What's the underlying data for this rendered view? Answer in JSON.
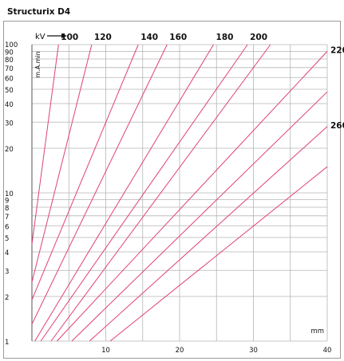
{
  "title": "Structurix D4",
  "chart_data": {
    "type": "line",
    "title": "Structurix D4",
    "xlabel": "mm",
    "ylabel": "m.A.min",
    "series_axis_label": "kV",
    "x_range": [
      0,
      40
    ],
    "y_range": [
      1,
      100
    ],
    "y_scale": "log",
    "x_ticks": [
      10,
      20,
      30,
      40
    ],
    "y_ticks": [
      1,
      2,
      3,
      4,
      5,
      6,
      7,
      8,
      9,
      10,
      20,
      30,
      40,
      50,
      60,
      70,
      80,
      90,
      100
    ],
    "grid": true,
    "colors": {
      "series": "#e0407a",
      "grid": "#b5b5b5",
      "frame": "#9a9a9a"
    },
    "series": [
      {
        "name": "100",
        "points": [
          [
            0,
            4.5
          ],
          [
            3.6,
            100
          ]
        ]
      },
      {
        "name": "120",
        "points": [
          [
            0,
            2.5
          ],
          [
            8.1,
            100
          ]
        ]
      },
      {
        "name": "140",
        "points": [
          [
            0,
            1.9
          ],
          [
            14.4,
            100
          ]
        ]
      },
      {
        "name": "160",
        "points": [
          [
            0,
            1.3
          ],
          [
            18.3,
            100
          ]
        ]
      },
      {
        "name": "180",
        "points": [
          [
            0.4,
            1
          ],
          [
            24.6,
            100
          ]
        ]
      },
      {
        "name": "200",
        "points": [
          [
            1.2,
            1
          ],
          [
            29.2,
            100
          ]
        ]
      },
      {
        "name": "",
        "points": [
          [
            2.6,
            1
          ],
          [
            32.3,
            100
          ]
        ]
      },
      {
        "name": "220",
        "points": [
          [
            3.4,
            1
          ],
          [
            40,
            90
          ]
        ]
      },
      {
        "name": "",
        "points": [
          [
            5.4,
            1
          ],
          [
            40,
            48
          ]
        ]
      },
      {
        "name": "260",
        "points": [
          [
            7.8,
            1
          ],
          [
            40,
            28
          ]
        ]
      },
      {
        "name": "",
        "points": [
          [
            10.6,
            1
          ],
          [
            40,
            15
          ]
        ]
      }
    ]
  }
}
